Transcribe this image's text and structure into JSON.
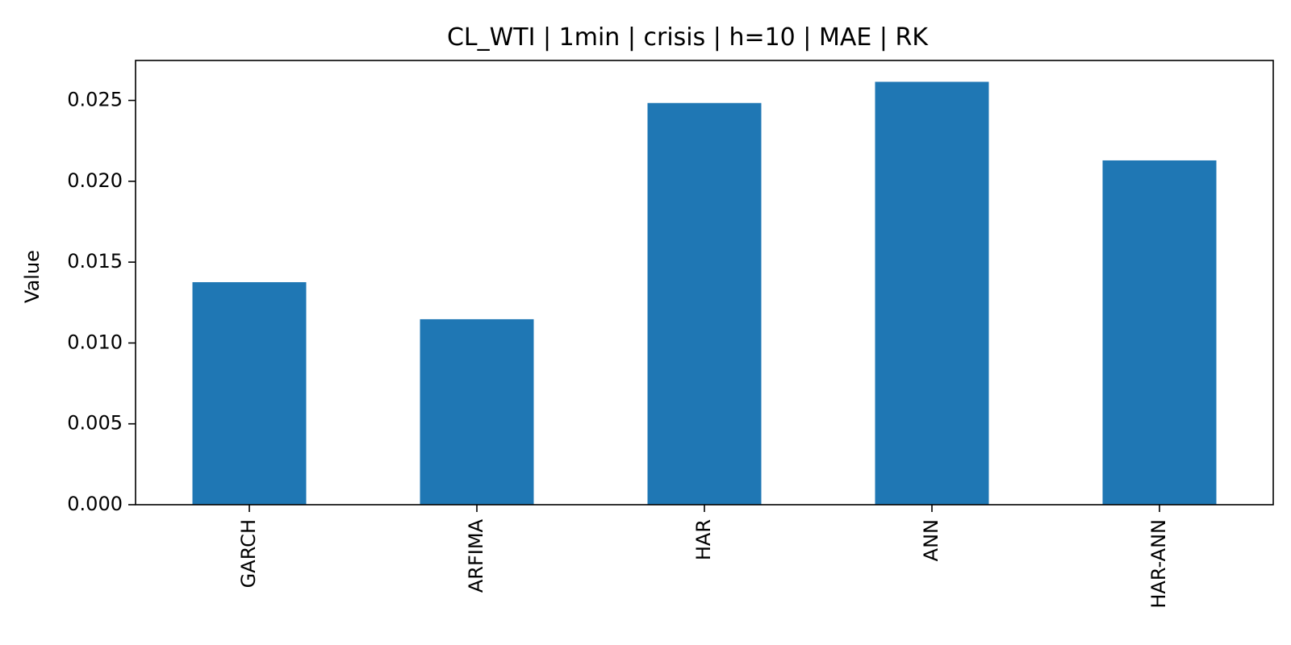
{
  "chart_data": {
    "type": "bar",
    "title": "CL_WTI | 1min | crisis | h=10 | MAE | RK",
    "xlabel": "",
    "ylabel": "Value",
    "categories": [
      "GARCH",
      "ARFIMA",
      "HAR",
      "ANN",
      "HAR-ANN"
    ],
    "values": [
      0.01376,
      0.01147,
      0.02484,
      0.02615,
      0.02129
    ],
    "ylim": [
      0,
      0.02747
    ],
    "yticks": [
      "0.000",
      "0.005",
      "0.010",
      "0.015",
      "0.020",
      "0.025"
    ],
    "ytick_values": [
      0,
      0.005,
      0.01,
      0.015,
      0.02,
      0.025
    ],
    "bar_color": "#1f77b4",
    "grid": false,
    "legend": "none"
  }
}
